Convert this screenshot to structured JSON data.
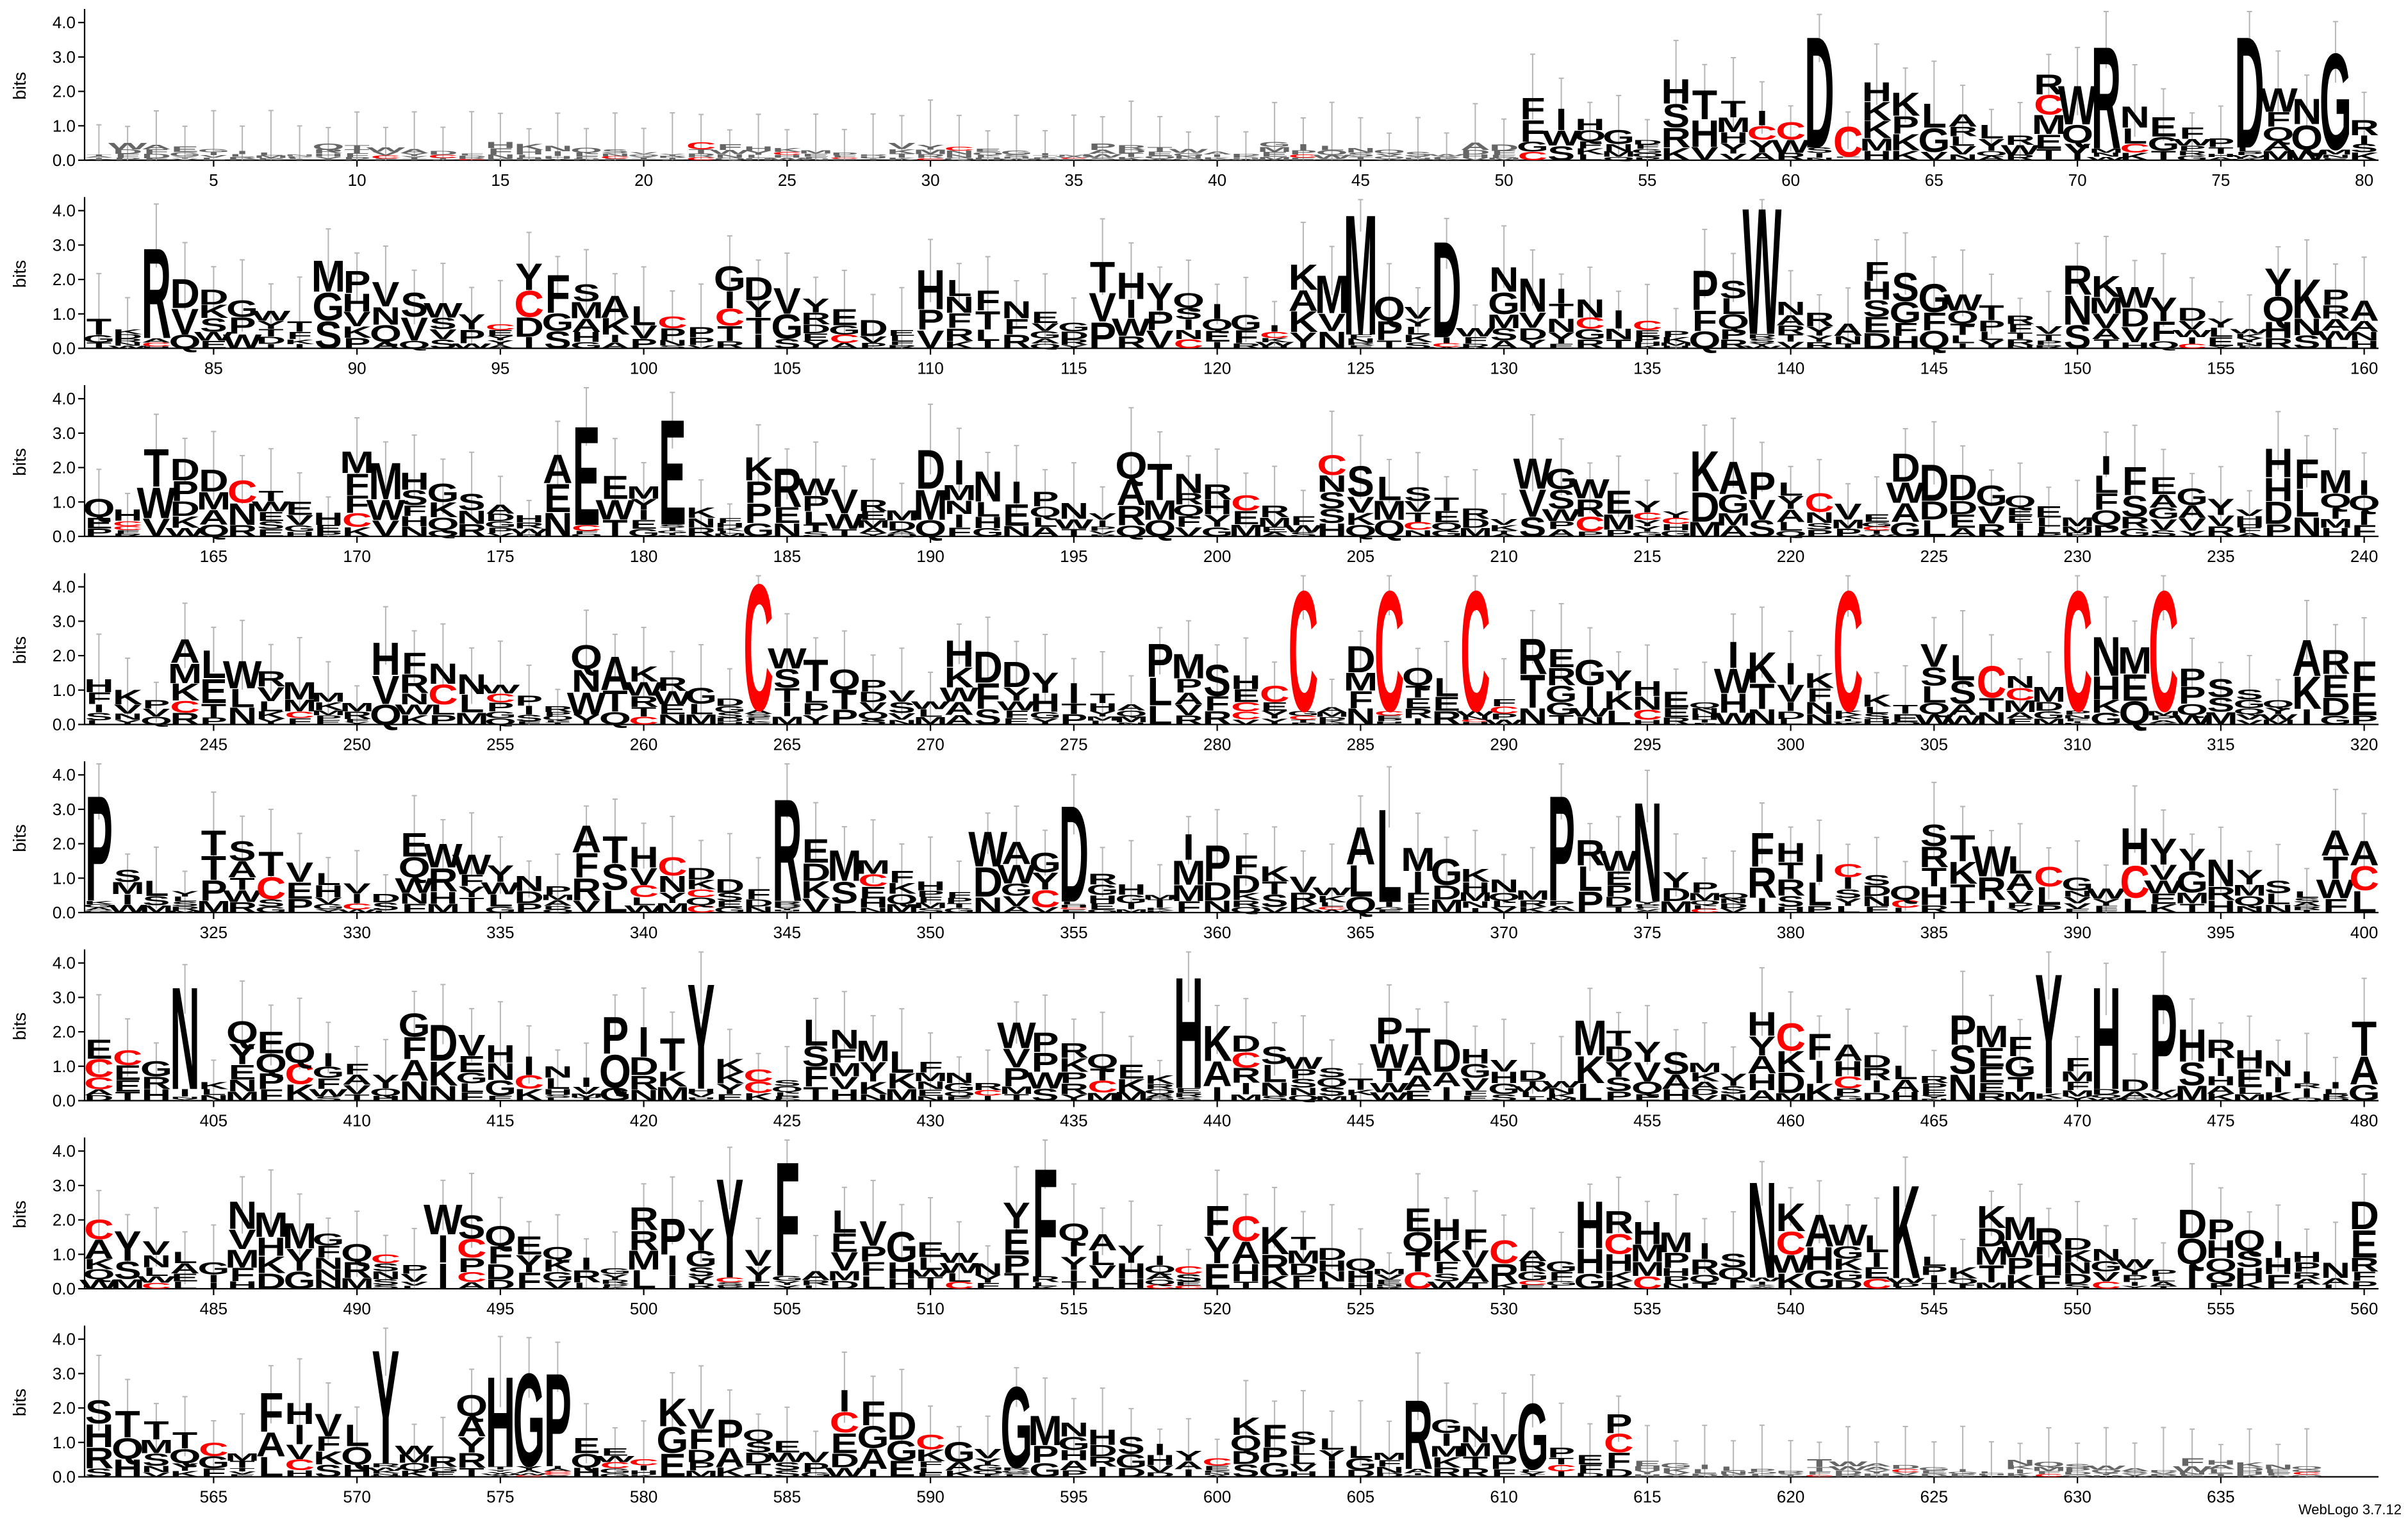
{
  "chart_data": {
    "type": "sequence-logo",
    "ylabel": "bits",
    "y_ticks": [
      "0.0",
      "1.0",
      "2.0",
      "3.0",
      "4.0"
    ],
    "ylim": [
      0,
      4.32
    ],
    "positions_per_row": 80,
    "total_positions": 640,
    "x_tick_every": 5,
    "colors": {
      "default": "#000000",
      "cysteine": "#ff0000",
      "error_bar": "#b5b5b5"
    },
    "highlights": [
      {
        "pos": 61,
        "letter": "D",
        "height": 3.7
      },
      {
        "pos": 62,
        "letter": "C",
        "height": 1.0,
        "color": "red"
      },
      {
        "pos": 71,
        "letter": "R",
        "height": 3.4
      },
      {
        "pos": 76,
        "letter": "D",
        "height": 3.7
      },
      {
        "pos": 79,
        "letter": "G",
        "height": 3.2
      },
      {
        "pos": 83,
        "letter": "R",
        "height": 3.0
      },
      {
        "pos": 125,
        "letter": "M",
        "height": 4.0
      },
      {
        "pos": 128,
        "letter": "D",
        "height": 3.2
      },
      {
        "pos": 139,
        "letter": "W",
        "height": 4.2
      },
      {
        "pos": 178,
        "letter": "E",
        "height": 3.3
      },
      {
        "pos": 181,
        "letter": "E",
        "height": 3.5
      },
      {
        "pos": 264,
        "letter": "C",
        "height": 4.2,
        "color": "red"
      },
      {
        "pos": 283,
        "letter": "C",
        "height": 4.0,
        "color": "red"
      },
      {
        "pos": 286,
        "letter": "C",
        "height": 4.0,
        "color": "red"
      },
      {
        "pos": 289,
        "letter": "C",
        "height": 4.0,
        "color": "red"
      },
      {
        "pos": 302,
        "letter": "C",
        "height": 4.0,
        "color": "red"
      },
      {
        "pos": 310,
        "letter": "C",
        "height": 4.0,
        "color": "red"
      },
      {
        "pos": 313,
        "letter": "C",
        "height": 4.0,
        "color": "red"
      },
      {
        "pos": 321,
        "letter": "P",
        "height": 3.5
      },
      {
        "pos": 345,
        "letter": "R",
        "height": 3.4
      },
      {
        "pos": 355,
        "letter": "D",
        "height": 3.2
      },
      {
        "pos": 366,
        "letter": "L",
        "height": 3.1
      },
      {
        "pos": 372,
        "letter": "P",
        "height": 3.5
      },
      {
        "pos": 375,
        "letter": "N",
        "height": 3.3
      },
      {
        "pos": 404,
        "letter": "N",
        "height": 3.4
      },
      {
        "pos": 422,
        "letter": "Y",
        "height": 3.5
      },
      {
        "pos": 439,
        "letter": "H",
        "height": 3.7
      },
      {
        "pos": 469,
        "letter": "Y",
        "height": 3.8
      },
      {
        "pos": 471,
        "letter": "H",
        "height": 3.4
      },
      {
        "pos": 473,
        "letter": "P",
        "height": 3.2
      },
      {
        "pos": 503,
        "letter": "Y",
        "height": 3.3
      },
      {
        "pos": 505,
        "letter": "F",
        "height": 3.8
      },
      {
        "pos": 514,
        "letter": "F",
        "height": 3.6
      },
      {
        "pos": 539,
        "letter": "N",
        "height": 3.2
      },
      {
        "pos": 544,
        "letter": "K",
        "height": 3.1
      },
      {
        "pos": 571,
        "letter": "Y",
        "height": 3.8
      },
      {
        "pos": 575,
        "letter": "H",
        "height": 3.0
      },
      {
        "pos": 576,
        "letter": "G",
        "height": 3.1
      },
      {
        "pos": 577,
        "letter": "P",
        "height": 3.1
      },
      {
        "pos": 593,
        "letter": "G",
        "height": 2.7
      },
      {
        "pos": 607,
        "letter": "R",
        "height": 2.3
      },
      {
        "pos": 611,
        "letter": "G",
        "height": 2.2
      }
    ]
  },
  "footer": "WebLogo 3.7.12"
}
